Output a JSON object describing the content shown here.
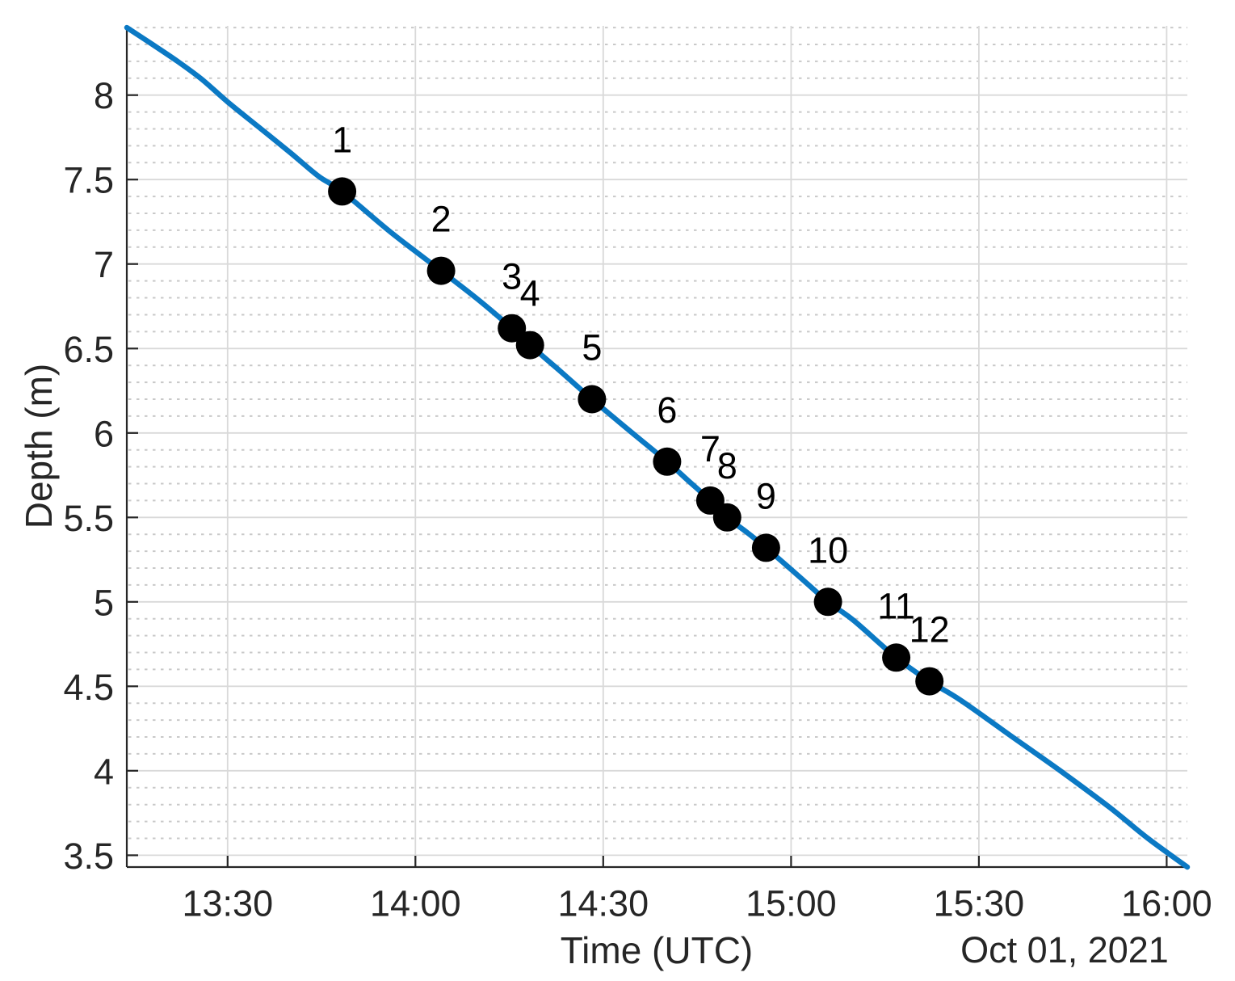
{
  "figure": {
    "background": "#ffffff",
    "kind": "depth-time-profile-plot"
  },
  "chart_data": {
    "type": "line",
    "title": "",
    "xlabel": "Time (UTC)",
    "ylabel": "Depth (m)",
    "date_label": "Oct 01, 2021",
    "legend": null,
    "grid": {
      "major": "on",
      "y_minor_dotted": "on"
    },
    "colors": {
      "line": "#0b79c4",
      "marker": "#000000",
      "marker_label": "#000000",
      "major_grid": "#d9d9d9",
      "minor_grid": "#c9c9c9",
      "axis": "#262626",
      "tick_text": "#262626"
    },
    "x_axis": {
      "tick_labels": [
        "13:30",
        "14:00",
        "14:30",
        "15:00",
        "15:30",
        "16:00"
      ],
      "tick_minutes_after_1300": [
        30,
        60,
        90,
        120,
        150,
        180
      ],
      "xlim_minutes_after_1300": [
        13.9,
        183.3
      ]
    },
    "y_axis": {
      "tick_labels": [
        "3.5",
        "4",
        "4.5",
        "5",
        "5.5",
        "6",
        "6.5",
        "7",
        "7.5",
        "8"
      ],
      "tick_values": [
        3.5,
        4,
        4.5,
        5,
        5.5,
        6,
        6.5,
        7,
        7.5,
        8
      ],
      "ylim": [
        3.43,
        8.41
      ],
      "minor_step": 0.1
    },
    "series": [
      {
        "name": "depth profile",
        "points_minutes_depth": [
          [
            13.9,
            8.4
          ],
          [
            18,
            8.3
          ],
          [
            22,
            8.2
          ],
          [
            26,
            8.09
          ],
          [
            30,
            7.96
          ],
          [
            35,
            7.81
          ],
          [
            40,
            7.66
          ],
          [
            44.5,
            7.52
          ],
          [
            48.3,
            7.43
          ],
          [
            56,
            7.19
          ],
          [
            64.1,
            6.96
          ],
          [
            70,
            6.79
          ],
          [
            75.4,
            6.62
          ],
          [
            78.3,
            6.52
          ],
          [
            83,
            6.37
          ],
          [
            88.2,
            6.2
          ],
          [
            94,
            6.02
          ],
          [
            100.2,
            5.83
          ],
          [
            103.5,
            5.72
          ],
          [
            107.1,
            5.6
          ],
          [
            109.8,
            5.5
          ],
          [
            113,
            5.41
          ],
          [
            116,
            5.32
          ],
          [
            121,
            5.16
          ],
          [
            125.9,
            5.0
          ],
          [
            130,
            4.89
          ],
          [
            136.8,
            4.67
          ],
          [
            142.1,
            4.53
          ],
          [
            147,
            4.42
          ],
          [
            155,
            4.21
          ],
          [
            163,
            4.0
          ],
          [
            171,
            3.78
          ],
          [
            177,
            3.6
          ],
          [
            183.3,
            3.43
          ]
        ]
      }
    ],
    "stations": [
      {
        "label": "1",
        "time": "13:48",
        "depth_m": 7.43,
        "minutes_after_1300": 48.3
      },
      {
        "label": "2",
        "time": "14:04",
        "depth_m": 6.96,
        "minutes_after_1300": 64.1
      },
      {
        "label": "3",
        "time": "14:15",
        "depth_m": 6.62,
        "minutes_after_1300": 75.4
      },
      {
        "label": "4",
        "time": "14:18",
        "depth_m": 6.52,
        "minutes_after_1300": 78.3
      },
      {
        "label": "5",
        "time": "14:28",
        "depth_m": 6.2,
        "minutes_after_1300": 88.2
      },
      {
        "label": "6",
        "time": "14:40",
        "depth_m": 5.83,
        "minutes_after_1300": 100.2
      },
      {
        "label": "7",
        "time": "14:47",
        "depth_m": 5.6,
        "minutes_after_1300": 107.1
      },
      {
        "label": "8",
        "time": "14:50",
        "depth_m": 5.5,
        "minutes_after_1300": 109.8
      },
      {
        "label": "9",
        "time": "14:56",
        "depth_m": 5.32,
        "minutes_after_1300": 116.0
      },
      {
        "label": "10",
        "time": "15:06",
        "depth_m": 5.0,
        "minutes_after_1300": 125.9
      },
      {
        "label": "11",
        "time": "15:17",
        "depth_m": 4.67,
        "minutes_after_1300": 136.8
      },
      {
        "label": "12",
        "time": "15:22",
        "depth_m": 4.53,
        "minutes_after_1300": 142.1
      }
    ]
  }
}
